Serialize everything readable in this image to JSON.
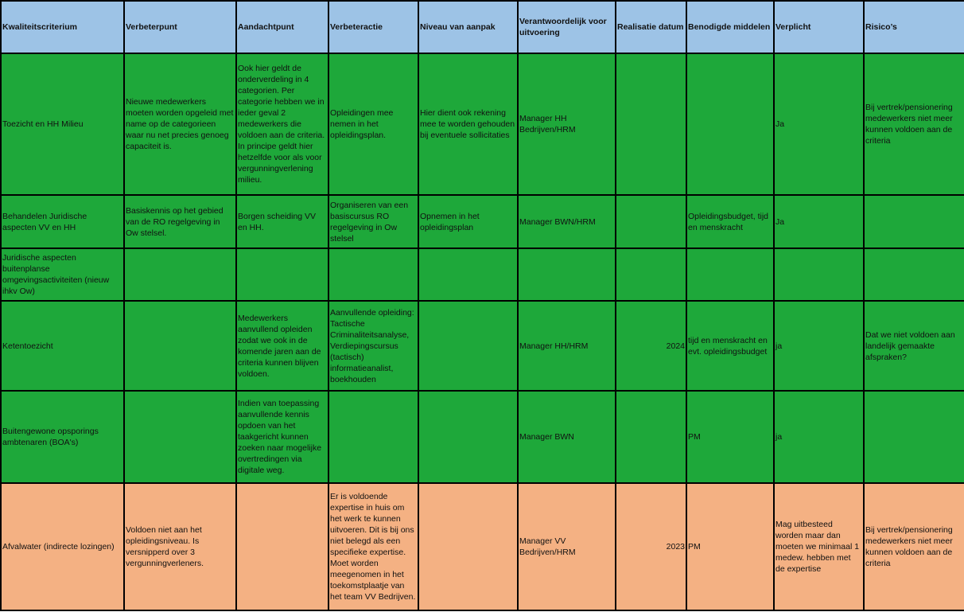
{
  "table": {
    "header": [
      "Kwaliteitscriterium",
      "Verbeterpunt",
      "Aandachtpunt",
      "Verbeteractie",
      "Niveau van aanpak",
      "Verantwoordelijk voor uitvoering",
      "Realisatie datum",
      "Benodigde middelen",
      "Verplicht",
      "Risico’s"
    ],
    "rows": [
      [
        "Toezicht en HH Milieu",
        "Nieuwe medewerkers moeten worden opgeleid met name op de categorieen waar nu net precies genoeg capaciteit is.",
        "Ook hier geldt de onderverdeling in 4 categorien. Per categorie hebben we in ieder geval 2 medewerkers die voldoen aan de criteria. In principe geldt hier hetzelfde voor als voor vergunningverlening milieu.",
        "Opleidingen mee nemen in het opleidingsplan.",
        "Hier dient ook rekening mee te worden gehouden bij eventuele sollicitaties",
        "Manager HH Bedrijven/HRM",
        null,
        null,
        "Ja",
        "Bij vertrek/pensionering medewerkers niet meer kunnen voldoen aan de criteria"
      ],
      [
        "Behandelen Juridische aspecten VV en HH",
        "Basiskennis op het gebied van de RO regelgeving in Ow stelsel.",
        "Borgen scheiding VV en HH.",
        "Organiseren van een basiscursus RO regelgeving in Ow stelsel",
        "Opnemen in het opleidingsplan",
        "Manager BWN/HRM",
        null,
        "Opleidingsbudget, tijd en menskracht",
        "Ja",
        null
      ],
      [
        "Juridische aspecten buitenplanse omgevingsactiviteiten (nieuw ihkv Ow)",
        null,
        null,
        null,
        null,
        null,
        null,
        null,
        null,
        null
      ],
      [
        "Ketentoezicht",
        null,
        "Medewerkers aanvullend opleiden zodat we ook in de komende jaren aan de criteria kunnen blijven voldoen.",
        "Aanvullende opleiding: Tactische Criminaliteitsanalyse, Verdiepingscursus (tactisch) informatieanalist, boekhouden",
        null,
        "Manager HH/HRM",
        2024,
        "tijd en menskracht en evt. opleidingsbudget",
        "ja",
        "Dat we niet voldoen aan landelijk gemaakte afspraken?"
      ],
      [
        "Buitengewone opsporings ambtenaren (BOA's)",
        null,
        "Indien van toepassing aanvullende kennis opdoen van het taakgericht kunnen zoeken naar mogelijke overtredingen via digitale weg.",
        null,
        null,
        "Manager BWN",
        null,
        "PM",
        "ja",
        null
      ],
      [
        "Afvalwater (indirecte lozingen)",
        "Voldoen niet aan het opleidingsniveau. Is versnipperd over 3 vergunningverleners.",
        null,
        "Er is voldoende expertise in huis om het werk te kunnen uitvoeren. Dit is bij ons niet belegd als een specifieke expertise. Moet worden meegenomen in het toekomstplaatje van het team VV Bedrijven.",
        null,
        "Manager VV Bedrijven/HRM",
        2023,
        "PM",
        "Mag uitbesteed worden maar dan moeten we minimaal 1 medew. hebben met de expertise",
        "Bij vertrek/pensionering medewerkers niet meer kunnen voldoen aan de criteria"
      ]
    ]
  }
}
